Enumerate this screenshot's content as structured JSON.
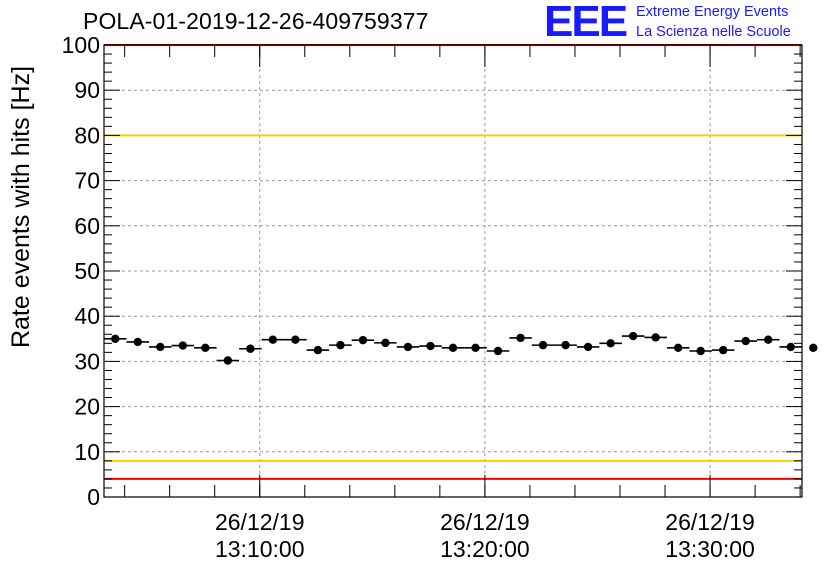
{
  "header": {
    "title": "POLA-01-2019-12-26-409759377",
    "logo_text": "EEE",
    "logo_line1": "Extreme Energy Events",
    "logo_line2": "La Scienza nelle Scuole"
  },
  "colors": {
    "logo": "#1a1aff",
    "threshold_red": "#ff0000",
    "threshold_yellow": "#ffcc00",
    "grid": "#9a9a9a",
    "marker": "#000000"
  },
  "chart_data": {
    "type": "scatter",
    "title": "POLA-01-2019-12-26-409759377",
    "ylabel": "Rate events with hits [Hz]",
    "xlabel": "",
    "ylim": [
      0,
      100
    ],
    "xlim": [
      "26/12/19 13:03:05",
      "26/12/19 13:34:05"
    ],
    "grid": true,
    "yticks": [
      "0",
      "10",
      "20",
      "30",
      "40",
      "50",
      "60",
      "70",
      "80",
      "90",
      "100"
    ],
    "xticks": [
      {
        "time": "13:10:00",
        "date": "26/12/19",
        "time_label": "13:10:00"
      },
      {
        "time": "13:20:00",
        "date": "26/12/19",
        "time_label": "13:20:00"
      },
      {
        "time": "13:30:00",
        "date": "26/12/19",
        "time_label": "13:30:00"
      }
    ],
    "bin_width_minutes": 1,
    "series": [
      {
        "x": [
          "13:03:05",
          "13:04:05",
          "13:05:05",
          "13:06:05",
          "13:07:05",
          "13:08:05",
          "13:09:05",
          "13:10:05",
          "13:11:05",
          "13:12:05",
          "13:13:05",
          "13:14:05",
          "13:15:05",
          "13:16:05",
          "13:17:05",
          "13:18:05",
          "13:19:05",
          "13:20:05",
          "13:21:05",
          "13:22:05",
          "13:23:05",
          "13:24:05",
          "13:25:05",
          "13:26:05",
          "13:27:05",
          "13:28:05",
          "13:29:05",
          "13:30:05",
          "13:31:05",
          "13:32:05",
          "13:33:05",
          "13:34:05"
        ],
        "y": [
          35.0,
          34.3,
          33.2,
          33.5,
          33.0,
          30.2,
          32.8,
          34.8,
          34.8,
          32.5,
          33.6,
          34.7,
          34.1,
          33.2,
          33.4,
          33.0,
          33.0,
          32.3,
          35.2,
          33.6,
          33.6,
          33.2,
          34.0,
          35.6,
          35.3,
          33.0,
          32.3,
          32.5,
          34.5,
          34.8,
          33.2,
          33.0
        ]
      }
    ],
    "reference_lines": [
      {
        "y": 100,
        "color": "#ff0000"
      },
      {
        "y": 80,
        "color": "#ffcc00"
      },
      {
        "y": 8,
        "color": "#ffcc00"
      },
      {
        "y": 4,
        "color": "#ff0000"
      }
    ]
  }
}
